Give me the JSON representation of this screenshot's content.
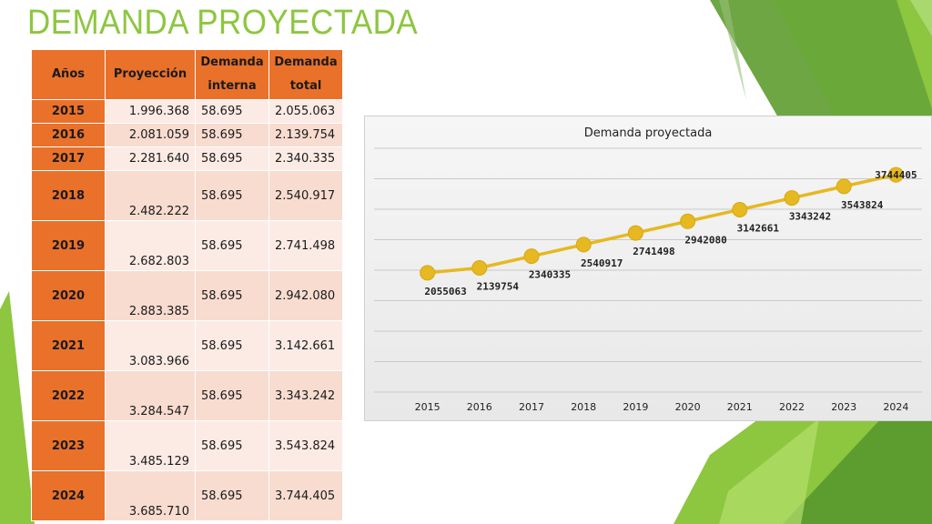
{
  "slide": {
    "title": "DEMANDA PROYECTADA",
    "title_color": "#8dc63f"
  },
  "table": {
    "headers": {
      "years": "Años",
      "projection": "Proyección",
      "internal_line1": "Demanda",
      "internal_line2": "interna",
      "total_line1": "Demanda",
      "total_line2": "total"
    },
    "rows": [
      {
        "year": "2015",
        "projection": "1.996.368",
        "internal": "58.695",
        "total": "2.055.063"
      },
      {
        "year": "2016",
        "projection": "2.081.059",
        "internal": "58.695",
        "total": "2.139.754"
      },
      {
        "year": "2017",
        "projection": "2.281.640",
        "internal": "58.695",
        "total": "2.340.335"
      },
      {
        "year": "2018",
        "projection": "2.482.222",
        "internal": "58.695",
        "total": "2.540.917"
      },
      {
        "year": "2019",
        "projection": "2.682.803",
        "internal": "58.695",
        "total": "2.741.498"
      },
      {
        "year": "2020",
        "projection": "2.883.385",
        "internal": "58.695",
        "total": "2.942.080"
      },
      {
        "year": "2021",
        "projection": "3.083.966",
        "internal": "58.695",
        "total": "3.142.661"
      },
      {
        "year": "2022",
        "projection": "3.284.547",
        "internal": "58.695",
        "total": "3.343.242"
      },
      {
        "year": "2023",
        "projection": "3.485.129",
        "internal": "58.695",
        "total": "3.543.824"
      },
      {
        "year": "2024",
        "projection": "3.685.710",
        "internal": "58.695",
        "total": "3.744.405"
      }
    ],
    "header_color": "#e9712a",
    "cell_color": "#f8dcd0"
  },
  "chart_data": {
    "type": "line",
    "title": "Demanda proyectada",
    "categories": [
      "2015",
      "2016",
      "2017",
      "2018",
      "2019",
      "2020",
      "2021",
      "2022",
      "2023",
      "2024"
    ],
    "values": [
      2055063,
      2139754,
      2340335,
      2540917,
      2741498,
      2942080,
      3142661,
      3343242,
      3543824,
      3744405
    ],
    "xlabel": "",
    "ylabel": "",
    "ylim": [
      0,
      4200000
    ],
    "grid": true,
    "legend": "none",
    "line_color": "#e6b821",
    "marker_color": "#e6b821"
  }
}
